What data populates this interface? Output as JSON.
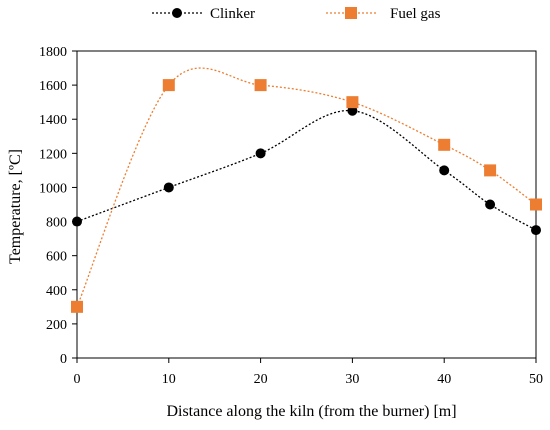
{
  "chart_data": {
    "type": "line",
    "title": "",
    "xlabel": "Distance along the kiln (from the burner) [m]",
    "ylabel": "Temperature, [ºC]",
    "xlim": [
      0,
      50
    ],
    "ylim": [
      0,
      1800
    ],
    "xticks": [
      0,
      10,
      20,
      30,
      40,
      50
    ],
    "yticks": [
      0,
      200,
      400,
      600,
      800,
      1000,
      1200,
      1400,
      1600,
      1800
    ],
    "grid": false,
    "legend_position": "top-center",
    "series": [
      {
        "name": "Clinker",
        "marker": "circle",
        "line_style": "dotted",
        "color": "#000000",
        "points": [
          [
            0,
            800
          ],
          [
            10,
            1000
          ],
          [
            20,
            1200
          ],
          [
            30,
            1450
          ],
          [
            40,
            1100
          ],
          [
            45,
            900
          ],
          [
            50,
            750
          ]
        ]
      },
      {
        "name": "Fuel gas",
        "marker": "square",
        "line_style": "dotted",
        "color": "#ed7d31",
        "points": [
          [
            0,
            300
          ],
          [
            10,
            1600
          ],
          [
            20,
            1600
          ],
          [
            30,
            1500
          ],
          [
            40,
            1250
          ],
          [
            45,
            1100
          ],
          [
            50,
            900
          ]
        ]
      }
    ]
  }
}
